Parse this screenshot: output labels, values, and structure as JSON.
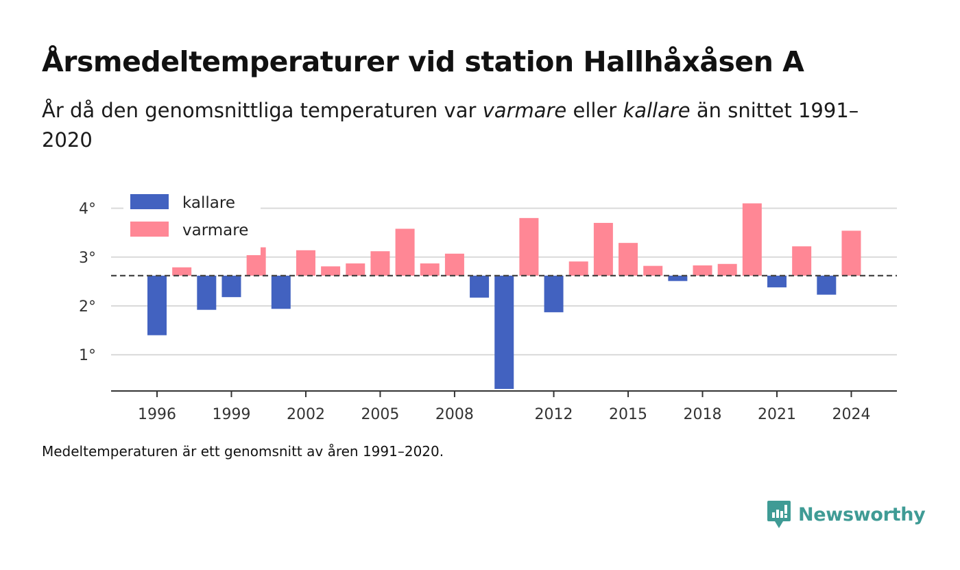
{
  "header": {
    "title": "Årsmedeltemperaturer vid station Hallhåxåsen A",
    "subtitle_pre": "År då den genomsnittliga temperaturen var ",
    "subtitle_warm": "varmare",
    "subtitle_mid": " eller ",
    "subtitle_cold": "kallare",
    "subtitle_post": " än snittet 1991–2020"
  },
  "footer": {
    "note": "Medeltemperaturen är ett genomsnitt av åren 1991–2020.",
    "brand": "Newsworthy"
  },
  "colors": {
    "cold": "#4262c0",
    "warm": "#ff8795",
    "brand": "#3f9b95"
  },
  "chart_data": {
    "type": "bar",
    "baseline": 2.62,
    "ylim": [
      0.2,
      4.2
    ],
    "yticks": [
      1,
      2,
      3,
      4
    ],
    "ytick_labels": [
      "1°",
      "2°",
      "3°",
      "4°"
    ],
    "xticks": [
      1996,
      1999,
      2002,
      2005,
      2008,
      2012,
      2015,
      2018,
      2021,
      2024
    ],
    "legend": [
      {
        "key": "cold",
        "label": "kallare"
      },
      {
        "key": "warm",
        "label": "varmare"
      }
    ],
    "legend_position": "top-left",
    "grid": true,
    "bars": [
      {
        "year": 1996,
        "value": 1.4
      },
      {
        "year": 1997,
        "value": 2.79
      },
      {
        "year": 1998,
        "value": 1.92
      },
      {
        "year": 1999,
        "value": 2.18
      },
      {
        "year": 2000,
        "value": 3.2
      },
      {
        "year": 2001,
        "value": 1.94
      },
      {
        "year": 2002,
        "value": 3.14
      },
      {
        "year": 2003,
        "value": 2.81
      },
      {
        "year": 2004,
        "value": 2.87
      },
      {
        "year": 2005,
        "value": 3.12
      },
      {
        "year": 2006,
        "value": 3.58
      },
      {
        "year": 2007,
        "value": 2.87
      },
      {
        "year": 2008,
        "value": 3.07
      },
      {
        "year": 2009,
        "value": 2.17
      },
      {
        "year": 2010,
        "value": 0.3
      },
      {
        "year": 2011,
        "value": 3.8
      },
      {
        "year": 2012,
        "value": 1.87
      },
      {
        "year": 2013,
        "value": 2.91
      },
      {
        "year": 2014,
        "value": 3.7
      },
      {
        "year": 2015,
        "value": 3.29
      },
      {
        "year": 2016,
        "value": 2.82
      },
      {
        "year": 2017,
        "value": 2.51
      },
      {
        "year": 2018,
        "value": 2.83
      },
      {
        "year": 2019,
        "value": 2.86
      },
      {
        "year": 2020,
        "value": 4.1
      },
      {
        "year": 2021,
        "value": 2.38
      },
      {
        "year": 2022,
        "value": 3.22
      },
      {
        "year": 2023,
        "value": 2.23
      },
      {
        "year": 2024,
        "value": 3.54
      }
    ]
  }
}
